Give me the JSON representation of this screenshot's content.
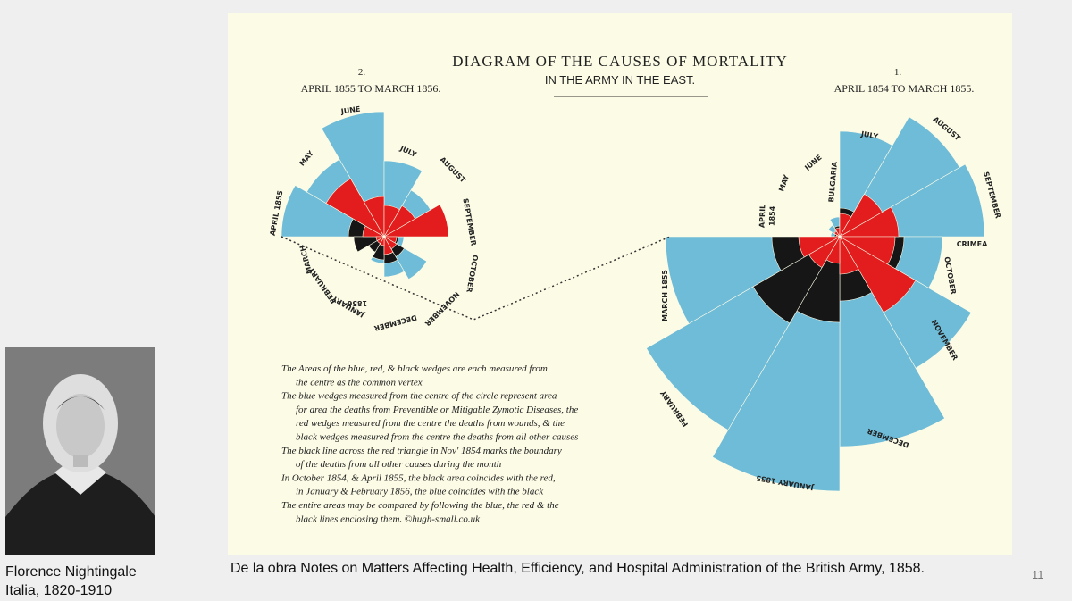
{
  "diagram": {
    "title": "DIAGRAM OF THE CAUSES OF MORTALITY",
    "subtitle": "IN THE ARMY IN THE EAST.",
    "left_number": "2.",
    "left_period": "APRIL 1855 TO MARCH 1856.",
    "right_number": "1.",
    "right_period": "APRIL 1854 TO MARCH 1855.",
    "left_labels": [
      "APRIL 1855",
      "MAY",
      "JUNE",
      "JULY",
      "AUGUST",
      "SEPTEMBER",
      "OCTOBER",
      "NOVEMBER",
      "DECEMBER",
      "JANUARY",
      "FEBRUARY",
      "MARCH",
      "1856"
    ],
    "right_labels": [
      "APRIL",
      "1854",
      "MAY",
      "JUNE",
      "BULGARIA",
      "JULY",
      "AUGUST",
      "SEPTEMBER",
      "CRIMEA",
      "OCTOBER",
      "NOVEMBER",
      "DECEMBER",
      "JANUARY 1855",
      "FEBRUARY",
      "MARCH 1855"
    ],
    "notes": [
      "The Areas of the blue, red, & black wedges are each measured from",
      "the centre as the common vertex",
      "The blue wedges measured from the centre of the circle represent area",
      "for area the deaths from Preventible or Mitigable Zymotic Diseases, the",
      "red wedges measured from the centre the deaths from wounds, & the",
      "black wedges measured from the centre the deaths from all other causes",
      "The black line across the red triangle in Nov' 1854 marks the boundary",
      "of the deaths from all other causes during the month",
      "In October 1854, & April 1855, the black area coincides with the red,",
      "in January & February 1856, the blue coincides with the black",
      "The entire areas may be compared by following the blue, the red & the",
      "black lines enclosing them.  ©hugh-small.co.uk"
    ]
  },
  "caption": "De la obra Notes on Matters Affecting Health, Efficiency, and Hospital Administration of the British Army, 1858.",
  "person": {
    "name": "Florence Nightingale",
    "detail": "Italia, 1820-1910"
  },
  "slide_number": "11"
}
